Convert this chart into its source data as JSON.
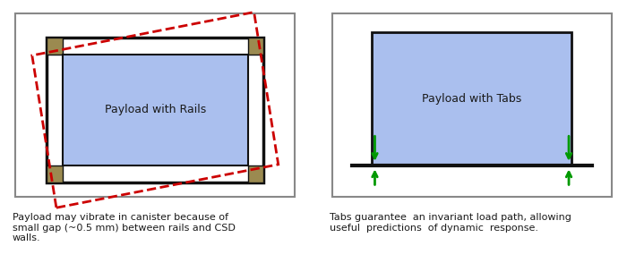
{
  "fig_width": 7.0,
  "fig_height": 2.94,
  "dpi": 100,
  "background_color": "#ffffff",
  "panel_border_color": "#888888",
  "payload_fill_color": "#aabfee",
  "payload_edge_color": "#111111",
  "rail_corner_color": "#9b8a50",
  "dashed_rect_color": "#cc0000",
  "arrow_color": "#009900",
  "text_color": "#1a1a1a",
  "label_rails": "Payload with Rails",
  "label_tabs": "Payload with Tabs",
  "caption_rails": "Payload may vibrate in canister because of\nsmall gap (~0.5 mm) between rails and CSD\nwalls.",
  "caption_tabs": "Tabs guarantee  an invariant load path, allowing\nuseful  predictions  of dynamic  response."
}
